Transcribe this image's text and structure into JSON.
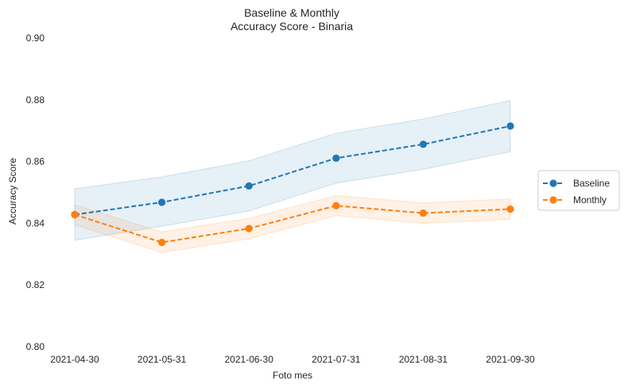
{
  "chart_data": {
    "type": "line",
    "title": "Baseline & Monthly",
    "subtitle": "Accuracy Score - Binaria",
    "xlabel": "Foto mes",
    "ylabel": "Accuracy Score",
    "ylim": [
      0.8,
      0.9
    ],
    "yticks": [
      "0.80",
      "0.82",
      "0.84",
      "0.86",
      "0.88",
      "0.90"
    ],
    "categories": [
      "2021-04-30",
      "2021-05-31",
      "2021-06-30",
      "2021-07-31",
      "2021-08-31",
      "2021-09-30"
    ],
    "grid": false,
    "legend_position": "right",
    "series": [
      {
        "name": "Baseline",
        "color": "#1f77b4",
        "line_style": "dashed",
        "marker": "circle",
        "values": [
          0.8428,
          0.8468,
          0.8521,
          0.8611,
          0.8656,
          0.8715
        ],
        "band_low": [
          0.8345,
          0.839,
          0.844,
          0.853,
          0.8575,
          0.8632
        ],
        "band_high": [
          0.8512,
          0.855,
          0.8603,
          0.8692,
          0.8738,
          0.8798
        ]
      },
      {
        "name": "Monthly",
        "color": "#ff7f0e",
        "line_style": "dashed",
        "marker": "circle",
        "values": [
          0.8428,
          0.8338,
          0.8383,
          0.8457,
          0.8433,
          0.8446
        ],
        "band_low": [
          0.8395,
          0.8305,
          0.835,
          0.8425,
          0.84,
          0.8413
        ],
        "band_high": [
          0.846,
          0.8372,
          0.8416,
          0.849,
          0.8466,
          0.8479
        ]
      }
    ]
  }
}
